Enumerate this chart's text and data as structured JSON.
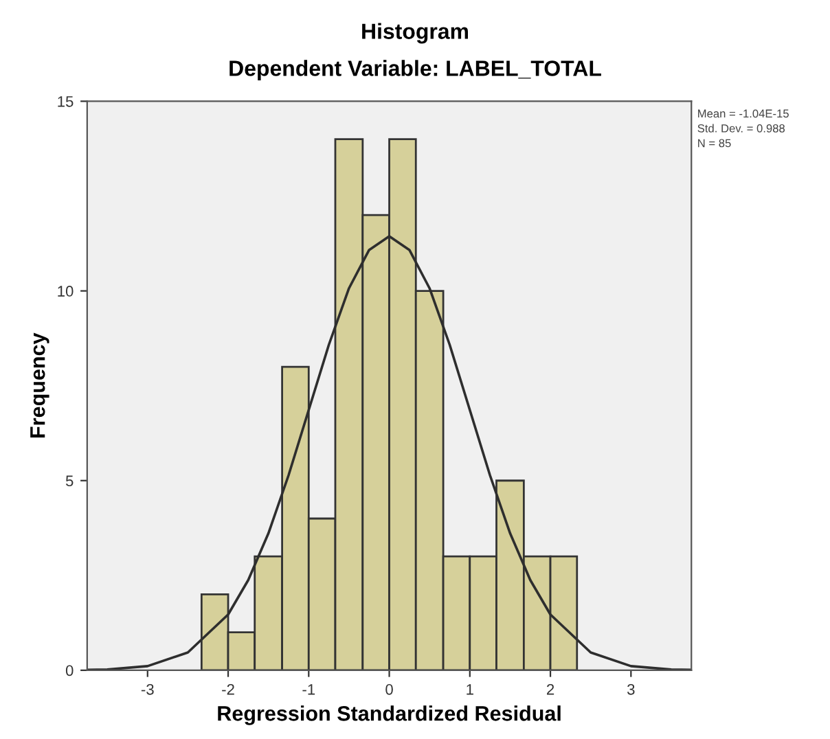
{
  "chart_data": {
    "type": "histogram",
    "title": "Histogram",
    "subtitle": "Dependent Variable: LABEL_TOTAL",
    "xlabel": "Regression Standardized Residual",
    "ylabel": "Frequency",
    "bins": [
      -2.33,
      -2.0,
      -1.67,
      -1.33,
      -1.0,
      -0.67,
      -0.33,
      0,
      0.33,
      0.67,
      1.0,
      1.33,
      1.67,
      2.0,
      2.33
    ],
    "series": [
      {
        "color": "#d6d09a",
        "values": [
          2,
          1,
          3,
          8,
          4,
          14,
          12,
          14,
          10,
          3,
          3,
          5,
          3,
          3
        ]
      },
      {
        "type": "line",
        "color": "#2e2e2e",
        "x": [
          -3.75,
          -3.5,
          -3,
          -2.5,
          -2,
          -1.75,
          -1.5,
          -1.25,
          -1,
          -0.75,
          -0.5,
          -0.25,
          0,
          0.25,
          0.5,
          0.75,
          1,
          1.25,
          1.5,
          1.75,
          2,
          2.5,
          3,
          3.5,
          3.75
        ],
        "values": [
          0.01,
          0.02,
          0.11,
          0.47,
          1.47,
          2.38,
          3.61,
          5.14,
          6.86,
          8.58,
          10.07,
          11.08,
          11.44,
          11.08,
          10.07,
          8.58,
          6.86,
          5.14,
          3.61,
          2.38,
          1.47,
          0.47,
          0.11,
          0.02,
          0.01
        ]
      }
    ],
    "xlim": [
      -3.75,
      3.75
    ],
    "ylim": [
      0,
      15
    ],
    "xticks": [
      -3,
      -2,
      -1,
      0,
      1,
      2,
      3
    ],
    "yticks": [
      0,
      5,
      10,
      15
    ],
    "grid": false,
    "annotations": [
      "Mean = -1.04E-15",
      "Std. Dev. = 0.988",
      "N = 85"
    ]
  }
}
